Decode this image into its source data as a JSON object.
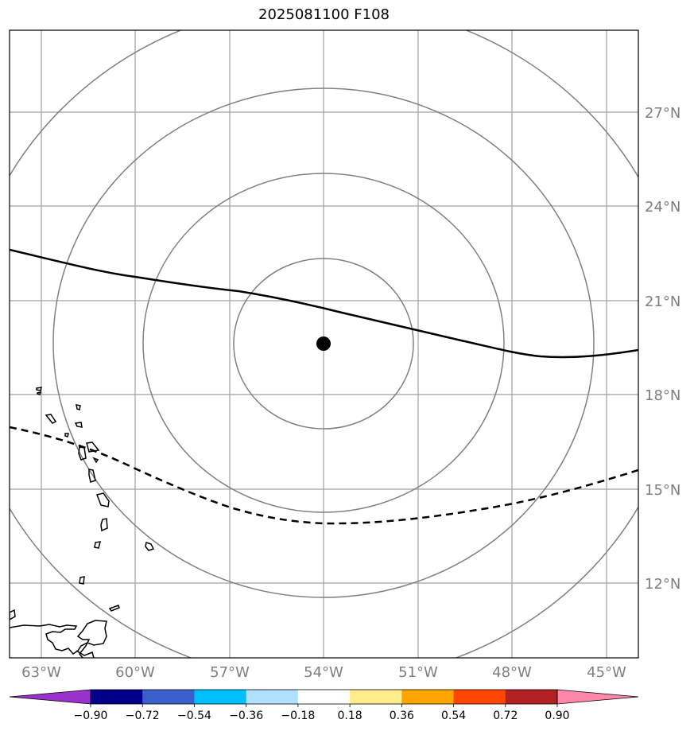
{
  "title": "2025081100 F108",
  "lat_labels": [
    "27°N",
    "24°N",
    "21°N",
    "18°N",
    "15°N",
    "12°N"
  ],
  "lon_labels": [
    "63°W",
    "60°W",
    "57°W",
    "54°W",
    "51°W",
    "48°W",
    "45°W"
  ],
  "colorbar": {
    "ticks": [
      "−0.90",
      "−0.72",
      "−0.54",
      "−0.36",
      "−0.18",
      "0.18",
      "0.36",
      "0.54",
      "0.72",
      "0.90"
    ],
    "colors": [
      "#9932cc",
      "#00008b",
      "#3a5fcd",
      "#00bfff",
      "#b0e0ff",
      "#ffffff",
      "#ffec8b",
      "#ffa500",
      "#ff4500",
      "#b22222",
      "#ff88aa"
    ]
  },
  "colors": {
    "grid": "#a0a0a0",
    "range_rings": "#808080",
    "coastline": "#000000",
    "center_marker": "#000000"
  },
  "center_marker": {
    "lon": -54,
    "lat": 19.6
  }
}
